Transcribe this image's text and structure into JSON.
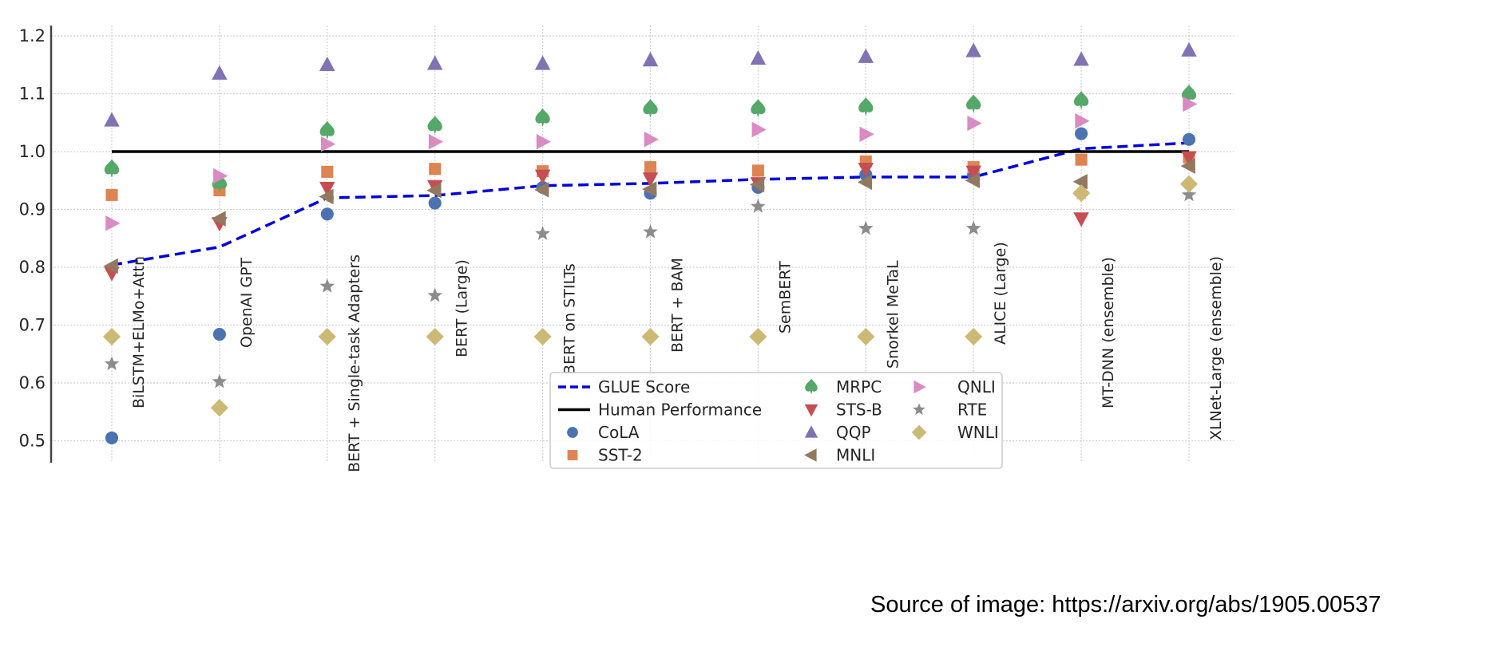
{
  "source_note": "Source of image: https://arxiv.org/abs/1905.00537",
  "chart_data": {
    "type": "scatter",
    "title": "",
    "xlabel": "",
    "ylabel": "",
    "ylim": [
      0.47,
      1.22
    ],
    "yticks": [
      0.5,
      0.6,
      0.7,
      0.8,
      0.9,
      1.0,
      1.1,
      1.2
    ],
    "ytick_labels": [
      "0.5",
      "0.6",
      "0.7",
      "0.8",
      "0.9",
      "1.0",
      "1.1",
      "1.2"
    ],
    "grid": true,
    "legend_position": "lower-center",
    "categories": [
      "BiLSTM+ELMo+Attn",
      "OpenAI GPT",
      "BERT + Single-task Adapters",
      "BERT (Large)",
      "BERT on STILTs",
      "BERT + BAM",
      "SemBERT",
      "Snorkel MeTaL",
      "ALICE (Large)",
      "MT-DNN (ensemble)",
      "XLNet-Large (ensemble)"
    ],
    "lines": [
      {
        "name": "GLUE Score",
        "style": "dashed",
        "color": "#0000dd",
        "values": [
          0.804,
          0.835,
          0.92,
          0.924,
          0.941,
          0.945,
          0.952,
          0.956,
          0.956,
          1.005,
          1.015
        ]
      },
      {
        "name": "Human Performance",
        "style": "solid",
        "color": "#000000",
        "values": [
          1.0,
          1.0,
          1.0,
          1.0,
          1.0,
          1.0,
          1.0,
          1.0,
          1.0,
          1.0,
          1.0
        ]
      }
    ],
    "series": [
      {
        "name": "CoLA",
        "marker": "circle",
        "color": "#4c72b0",
        "values": [
          0.505,
          0.684,
          0.892,
          0.911,
          0.938,
          0.928,
          0.938,
          0.96,
          0.96,
          1.031,
          1.021
        ]
      },
      {
        "name": "SST-2",
        "marker": "square",
        "color": "#dd8452",
        "values": [
          0.925,
          0.933,
          0.965,
          0.97,
          0.966,
          0.973,
          0.967,
          0.983,
          0.973,
          0.986,
          0.99
        ]
      },
      {
        "name": "MRPC",
        "marker": "spade",
        "color": "#55a868",
        "values": [
          0.97,
          0.945,
          1.036,
          1.045,
          1.058,
          1.074,
          1.074,
          1.077,
          1.082,
          1.088,
          1.099
        ]
      },
      {
        "name": "STS-B",
        "marker": "triangle-down",
        "color": "#c44e52",
        "values": [
          0.79,
          0.876,
          0.937,
          0.94,
          0.958,
          0.953,
          0.945,
          0.97,
          0.965,
          0.884,
          0.99
        ]
      },
      {
        "name": "QQP",
        "marker": "triangle-up",
        "color": "#8172b3",
        "values": [
          1.054,
          1.135,
          1.15,
          1.152,
          1.152,
          1.158,
          1.161,
          1.164,
          1.174,
          1.159,
          1.175
        ]
      },
      {
        "name": "MNLI",
        "marker": "triangle-left",
        "color": "#937860",
        "values": [
          0.802,
          0.884,
          0.922,
          0.933,
          0.934,
          0.935,
          0.943,
          0.947,
          0.95,
          0.948,
          0.975
        ]
      },
      {
        "name": "QNLI",
        "marker": "triangle-right",
        "color": "#da8bc3",
        "values": [
          0.876,
          0.958,
          1.013,
          1.017,
          1.017,
          1.021,
          1.038,
          1.03,
          1.049,
          1.053,
          1.082
        ]
      },
      {
        "name": "RTE",
        "marker": "star",
        "color": "#8c8c8c",
        "values": [
          0.633,
          0.602,
          0.767,
          0.751,
          0.858,
          0.861,
          0.905,
          0.867,
          0.867,
          0.928,
          0.925
        ]
      },
      {
        "name": "WNLI",
        "marker": "diamond",
        "color": "#ccb974",
        "values": [
          0.68,
          0.557,
          0.68,
          0.68,
          0.68,
          0.68,
          0.68,
          0.68,
          0.68,
          0.928,
          0.944
        ]
      }
    ],
    "legend_columns": [
      [
        "GLUE Score",
        "Human Performance",
        "CoLA",
        "SST-2"
      ],
      [
        "MRPC",
        "STS-B",
        "QQP",
        "MNLI"
      ],
      [
        "QNLI",
        "RTE",
        "WNLI"
      ]
    ]
  }
}
